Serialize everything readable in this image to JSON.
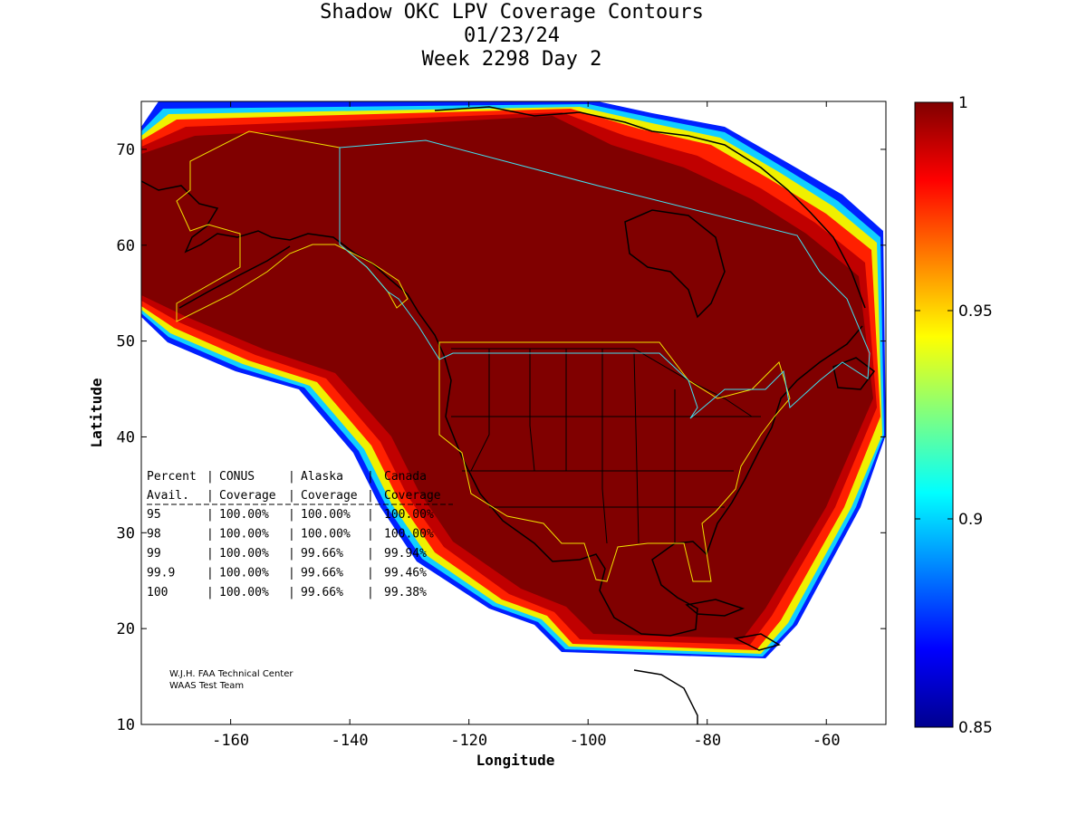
{
  "title": {
    "line1": "Shadow OKC LPV Coverage Contours",
    "line2": "01/23/24",
    "line3": "Week 2298 Day 2"
  },
  "axes": {
    "xlabel": "Longitude",
    "ylabel": "Latitude",
    "xlim": [
      -175,
      -50
    ],
    "ylim": [
      10,
      75
    ],
    "xticks": [
      -160,
      -140,
      -120,
      -100,
      -80,
      -60
    ],
    "yticks": [
      10,
      20,
      30,
      40,
      50,
      60,
      70
    ]
  },
  "colorbar": {
    "range": [
      0.85,
      1
    ],
    "ticks": [
      "1",
      "0.95",
      "0.9",
      "0.85"
    ],
    "colormap": "jet"
  },
  "stats_table": {
    "header1": [
      "Percent",
      "CONUS",
      "Alaska",
      "Canada"
    ],
    "header2": [
      "Avail.",
      "Coverage",
      "Coverage",
      "Coverage"
    ],
    "rows": [
      [
        "95",
        "100.00%",
        "100.00%",
        "100.00%"
      ],
      [
        "98",
        "100.00%",
        "100.00%",
        "100.00%"
      ],
      [
        "99",
        "100.00%",
        "99.66%",
        "99.94%"
      ],
      [
        "99.9",
        "100.00%",
        "99.66%",
        "99.46%"
      ],
      [
        "100",
        "100.00%",
        "99.66%",
        "99.38%"
      ]
    ]
  },
  "credit": {
    "line1": "W.J.H. FAA Technical Center",
    "line2": "WAAS Test Team"
  },
  "colors": {
    "full_coverage": "#800000",
    "border_conus": "#f0e000",
    "border_canada": "#40e0f0"
  }
}
